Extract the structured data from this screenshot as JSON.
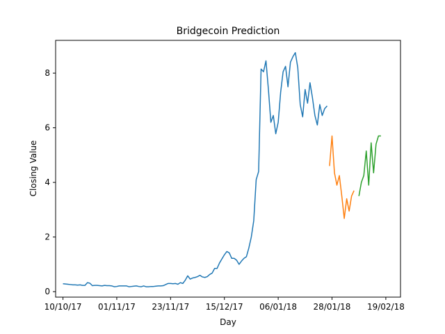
{
  "chart_data": {
    "type": "line",
    "title": "Bridgecoin Prediction",
    "xlabel": "Day",
    "ylabel": "Closing Value",
    "xlim": [
      "2017-10-07",
      "2018-02-25"
    ],
    "ylim": [
      -0.2,
      9.2
    ],
    "grid": false,
    "x_ticks": [
      "10/10/17",
      "01/11/17",
      "23/11/17",
      "15/12/17",
      "06/01/18",
      "28/01/18",
      "19/02/18"
    ],
    "x_tick_dates": [
      "2017-10-10",
      "2017-11-01",
      "2017-11-23",
      "2017-12-15",
      "2018-01-06",
      "2018-01-28",
      "2018-02-19"
    ],
    "y_ticks": [
      "0",
      "2",
      "4",
      "6",
      "8"
    ],
    "y_tick_values": [
      0,
      2,
      4,
      6,
      8
    ],
    "series": [
      {
        "color": "#1f77b4",
        "points": [
          [
            "2017-10-10",
            0.29
          ],
          [
            "2017-10-11",
            0.28
          ],
          [
            "2017-10-12",
            0.27
          ],
          [
            "2017-10-13",
            0.26
          ],
          [
            "2017-10-14",
            0.25
          ],
          [
            "2017-10-15",
            0.25
          ],
          [
            "2017-10-16",
            0.24
          ],
          [
            "2017-10-17",
            0.25
          ],
          [
            "2017-10-18",
            0.23
          ],
          [
            "2017-10-19",
            0.23
          ],
          [
            "2017-10-20",
            0.33
          ],
          [
            "2017-10-21",
            0.31
          ],
          [
            "2017-10-22",
            0.22
          ],
          [
            "2017-10-23",
            0.23
          ],
          [
            "2017-10-24",
            0.23
          ],
          [
            "2017-10-25",
            0.22
          ],
          [
            "2017-10-26",
            0.21
          ],
          [
            "2017-10-27",
            0.23
          ],
          [
            "2017-10-28",
            0.22
          ],
          [
            "2017-10-29",
            0.22
          ],
          [
            "2017-10-30",
            0.21
          ],
          [
            "2017-10-31",
            0.18
          ],
          [
            "2017-11-01",
            0.19
          ],
          [
            "2017-11-02",
            0.21
          ],
          [
            "2017-11-03",
            0.21
          ],
          [
            "2017-11-04",
            0.21
          ],
          [
            "2017-11-05",
            0.21
          ],
          [
            "2017-11-06",
            0.18
          ],
          [
            "2017-11-07",
            0.19
          ],
          [
            "2017-11-08",
            0.2
          ],
          [
            "2017-11-09",
            0.21
          ],
          [
            "2017-11-10",
            0.19
          ],
          [
            "2017-11-11",
            0.18
          ],
          [
            "2017-11-12",
            0.21
          ],
          [
            "2017-11-13",
            0.18
          ],
          [
            "2017-11-14",
            0.18
          ],
          [
            "2017-11-15",
            0.19
          ],
          [
            "2017-11-16",
            0.19
          ],
          [
            "2017-11-17",
            0.2
          ],
          [
            "2017-11-18",
            0.21
          ],
          [
            "2017-11-19",
            0.21
          ],
          [
            "2017-11-20",
            0.22
          ],
          [
            "2017-11-21",
            0.26
          ],
          [
            "2017-11-22",
            0.3
          ],
          [
            "2017-11-23",
            0.3
          ],
          [
            "2017-11-24",
            0.29
          ],
          [
            "2017-11-25",
            0.3
          ],
          [
            "2017-11-26",
            0.27
          ],
          [
            "2017-11-27",
            0.33
          ],
          [
            "2017-11-28",
            0.3
          ],
          [
            "2017-11-29",
            0.42
          ],
          [
            "2017-11-30",
            0.58
          ],
          [
            "2017-12-01",
            0.46
          ],
          [
            "2017-12-02",
            0.5
          ],
          [
            "2017-12-03",
            0.52
          ],
          [
            "2017-12-04",
            0.55
          ],
          [
            "2017-12-05",
            0.6
          ],
          [
            "2017-12-06",
            0.54
          ],
          [
            "2017-12-07",
            0.52
          ],
          [
            "2017-12-08",
            0.55
          ],
          [
            "2017-12-09",
            0.63
          ],
          [
            "2017-12-10",
            0.68
          ],
          [
            "2017-12-11",
            0.85
          ],
          [
            "2017-12-12",
            0.85
          ],
          [
            "2017-12-13",
            1.05
          ],
          [
            "2017-12-14",
            1.2
          ],
          [
            "2017-12-15",
            1.35
          ],
          [
            "2017-12-16",
            1.47
          ],
          [
            "2017-12-17",
            1.42
          ],
          [
            "2017-12-18",
            1.22
          ],
          [
            "2017-12-19",
            1.22
          ],
          [
            "2017-12-20",
            1.15
          ],
          [
            "2017-12-21",
            1.0
          ],
          [
            "2017-12-22",
            1.12
          ],
          [
            "2017-12-23",
            1.22
          ],
          [
            "2017-12-24",
            1.28
          ],
          [
            "2017-12-25",
            1.6
          ],
          [
            "2017-12-26",
            2.0
          ],
          [
            "2017-12-27",
            2.6
          ],
          [
            "2017-12-28",
            4.1
          ],
          [
            "2017-12-29",
            4.4
          ],
          [
            "2017-12-30",
            8.15
          ],
          [
            "2017-12-31",
            8.05
          ],
          [
            "2018-01-01",
            8.45
          ],
          [
            "2018-01-02",
            7.4
          ],
          [
            "2018-01-03",
            6.2
          ],
          [
            "2018-01-04",
            6.45
          ],
          [
            "2018-01-05",
            5.78
          ],
          [
            "2018-01-06",
            6.2
          ],
          [
            "2018-01-07",
            7.3
          ],
          [
            "2018-01-08",
            8.05
          ],
          [
            "2018-01-09",
            8.25
          ],
          [
            "2018-01-10",
            7.5
          ],
          [
            "2018-01-11",
            8.4
          ],
          [
            "2018-01-12",
            8.6
          ],
          [
            "2018-01-13",
            8.75
          ],
          [
            "2018-01-14",
            8.2
          ],
          [
            "2018-01-15",
            6.85
          ],
          [
            "2018-01-16",
            6.4
          ],
          [
            "2018-01-17",
            7.4
          ],
          [
            "2018-01-18",
            6.9
          ],
          [
            "2018-01-19",
            7.65
          ],
          [
            "2018-01-20",
            7.1
          ],
          [
            "2018-01-21",
            6.45
          ],
          [
            "2018-01-22",
            6.1
          ],
          [
            "2018-01-23",
            6.85
          ],
          [
            "2018-01-24",
            6.45
          ],
          [
            "2018-01-25",
            6.7
          ],
          [
            "2018-01-26",
            6.8
          ]
        ]
      },
      {
        "color": "#ff7f0e",
        "points": [
          [
            "2018-01-27",
            4.6
          ],
          [
            "2018-01-28",
            5.7
          ],
          [
            "2018-01-29",
            4.35
          ],
          [
            "2018-01-30",
            3.9
          ],
          [
            "2018-01-31",
            4.25
          ],
          [
            "2018-02-01",
            3.5
          ],
          [
            "2018-02-02",
            2.68
          ],
          [
            "2018-02-03",
            3.4
          ],
          [
            "2018-02-04",
            2.95
          ],
          [
            "2018-02-05",
            3.5
          ],
          [
            "2018-02-06",
            3.7
          ]
        ]
      },
      {
        "color": "#2ca02c",
        "points": [
          [
            "2018-02-08",
            3.5
          ],
          [
            "2018-02-09",
            4.0
          ],
          [
            "2018-02-10",
            4.25
          ],
          [
            "2018-02-11",
            5.15
          ],
          [
            "2018-02-12",
            3.9
          ],
          [
            "2018-02-13",
            5.45
          ],
          [
            "2018-02-14",
            4.35
          ],
          [
            "2018-02-15",
            5.4
          ],
          [
            "2018-02-16",
            5.7
          ],
          [
            "2018-02-17",
            5.7
          ]
        ]
      }
    ]
  }
}
